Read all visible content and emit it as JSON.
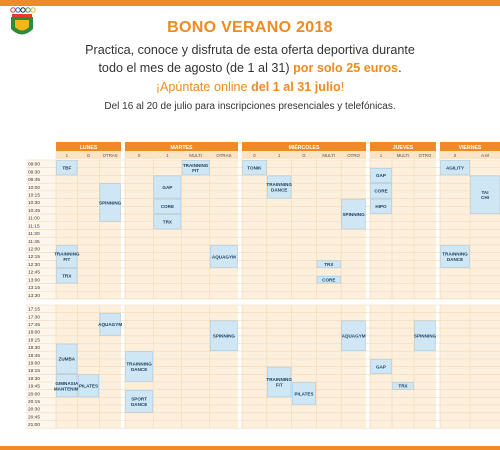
{
  "header": {
    "title": "BONO VERANO 2018",
    "line1": "Practica, conoce y disfruta de esta oferta deportiva durante",
    "line2_pre": "todo el mes de agosto (de 1 al 31)",
    "line2_bold": "por solo 25 euros",
    "line2_post": ".",
    "line3_pre": "¡Apúntate online",
    "line3_bold": "del 1 al 31 julio",
    "line3_post": "!",
    "line4": "Del 16 al 20 de julio para inscripciones presenciales y telefónicas."
  },
  "colors": {
    "orange": "#f08a26",
    "block": "#cfe6f5",
    "block_border": "#8fbfe0",
    "grid_bg": "#fcefdc",
    "grid_line": "#f2d8b8",
    "text_dark": "#1a3e5c"
  },
  "days": [
    {
      "name": "LUNES",
      "subcols": [
        "1",
        "G",
        "OTRAS"
      ]
    },
    {
      "name": "MARTES",
      "subcols": [
        "0",
        "1",
        "MULTI",
        "OTRAS"
      ]
    },
    {
      "name": "MIÉRCOLES",
      "subcols": [
        "0",
        "1",
        "G",
        "MULTI",
        "OTRO"
      ]
    },
    {
      "name": "JUEVES",
      "subcols": [
        "1",
        "MULTI",
        "OTRO"
      ]
    },
    {
      "name": "VIERNES",
      "subcols": [
        "0",
        "A.M"
      ]
    }
  ],
  "times_morning": [
    "09:00",
    "09:30",
    "09:45",
    "10:00",
    "10:15",
    "10:30",
    "10:45",
    "11:00",
    "11:15",
    "11:30",
    "11:45",
    "12:00",
    "12:15",
    "12:30",
    "12:45",
    "13:00",
    "13:15",
    "13:30"
  ],
  "times_afternoon": [
    "17:15",
    "17:30",
    "17:45",
    "18:00",
    "18:15",
    "18:30",
    "18:45",
    "19:00",
    "19:15",
    "19:30",
    "19:45",
    "20:00",
    "20:15",
    "20:30",
    "20:45",
    "21:00"
  ],
  "morning_classes": [
    {
      "label": "TBF",
      "col": 0,
      "start": 0,
      "end": 2
    },
    {
      "label": "SPINNING",
      "col": 2,
      "start": 3,
      "end": 8
    },
    {
      "label": "TRAINNING FIT",
      "col": 0,
      "start": 11,
      "end": 14
    },
    {
      "label": "TRX",
      "col": 0,
      "start": 14,
      "end": 16
    },
    {
      "label": "TRAINNING FIT",
      "col": 5,
      "start": 0,
      "end": 2
    },
    {
      "label": "GAP",
      "col": 4,
      "start": 2,
      "end": 5
    },
    {
      "label": "CORE",
      "col": 4,
      "start": 5,
      "end": 7
    },
    {
      "label": "TRX",
      "col": 4,
      "start": 7,
      "end": 9
    },
    {
      "label": "AQUAGYM",
      "col": 6,
      "start": 11,
      "end": 14
    },
    {
      "label": "TONIK",
      "col": 7,
      "start": 0,
      "end": 2
    },
    {
      "label": "TRAINNING DANCE",
      "col": 8,
      "start": 2,
      "end": 5
    },
    {
      "label": "SPINNING",
      "col": 11,
      "start": 5,
      "end": 9
    },
    {
      "label": "TRX",
      "col": 10,
      "start": 13,
      "end": 14
    },
    {
      "label": "CORE",
      "col": 10,
      "start": 15,
      "end": 16
    },
    {
      "label": "GAP",
      "col": 12,
      "start": 1,
      "end": 3
    },
    {
      "label": "CORE",
      "col": 12,
      "start": 3,
      "end": 5
    },
    {
      "label": "HIPO",
      "col": 12,
      "start": 5,
      "end": 7
    },
    {
      "label": "AGILITY",
      "col": 15,
      "start": 0,
      "end": 2
    },
    {
      "label": "TAI CHI",
      "col": 16,
      "start": 2,
      "end": 7
    },
    {
      "label": "TRAINNING DANCE",
      "col": 15,
      "start": 11,
      "end": 14
    }
  ],
  "afternoon_classes": [
    {
      "label": "AQUAGYM",
      "col": 2,
      "start": 1,
      "end": 4
    },
    {
      "label": "ZUMBA",
      "col": 0,
      "start": 5,
      "end": 9
    },
    {
      "label": "GIMNASIA MANTENIM.",
      "col": 0,
      "start": 9,
      "end": 12
    },
    {
      "label": "PILATES",
      "col": 1,
      "start": 9,
      "end": 12
    },
    {
      "label": "TRAINNING DANCE",
      "col": 3,
      "start": 6,
      "end": 10
    },
    {
      "label": "SPORT DANCE",
      "col": 3,
      "start": 11,
      "end": 14
    },
    {
      "label": "SPINNING",
      "col": 6,
      "start": 2,
      "end": 6
    },
    {
      "label": "AQUAGYM",
      "col": 11,
      "start": 2,
      "end": 6
    },
    {
      "label": "TRAINNING FIT",
      "col": 8,
      "start": 8,
      "end": 12
    },
    {
      "label": "PILATES",
      "col": 9,
      "start": 10,
      "end": 13
    },
    {
      "label": "SPINNING",
      "col": 14,
      "start": 2,
      "end": 6
    },
    {
      "label": "GAP",
      "col": 12,
      "start": 7,
      "end": 9
    },
    {
      "label": "TRX",
      "col": 13,
      "start": 10,
      "end": 11
    }
  ]
}
